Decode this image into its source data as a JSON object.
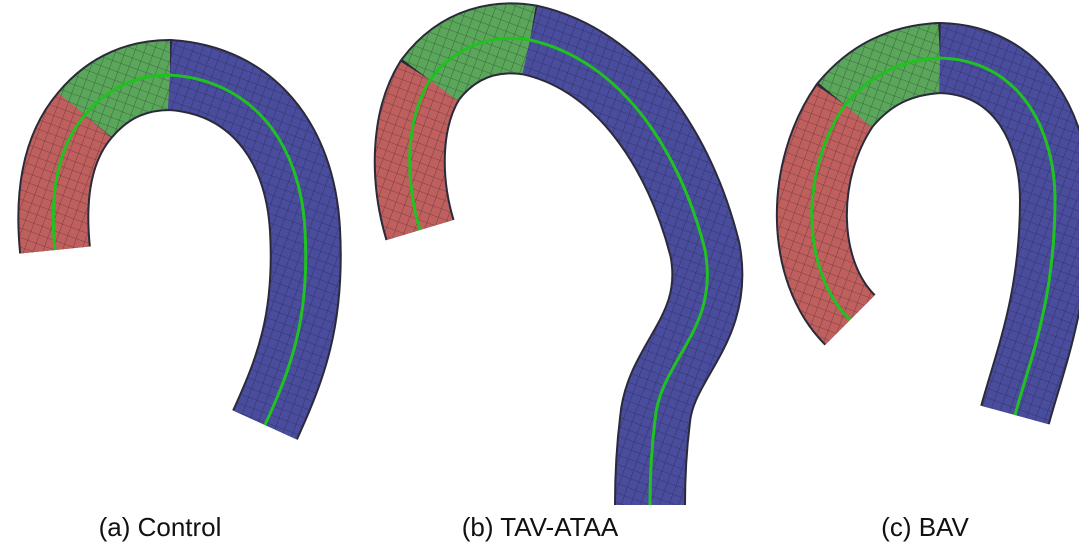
{
  "captions": [
    "(a) Control",
    "(b) TAV-ATAA",
    "(c) BAV"
  ]
}
